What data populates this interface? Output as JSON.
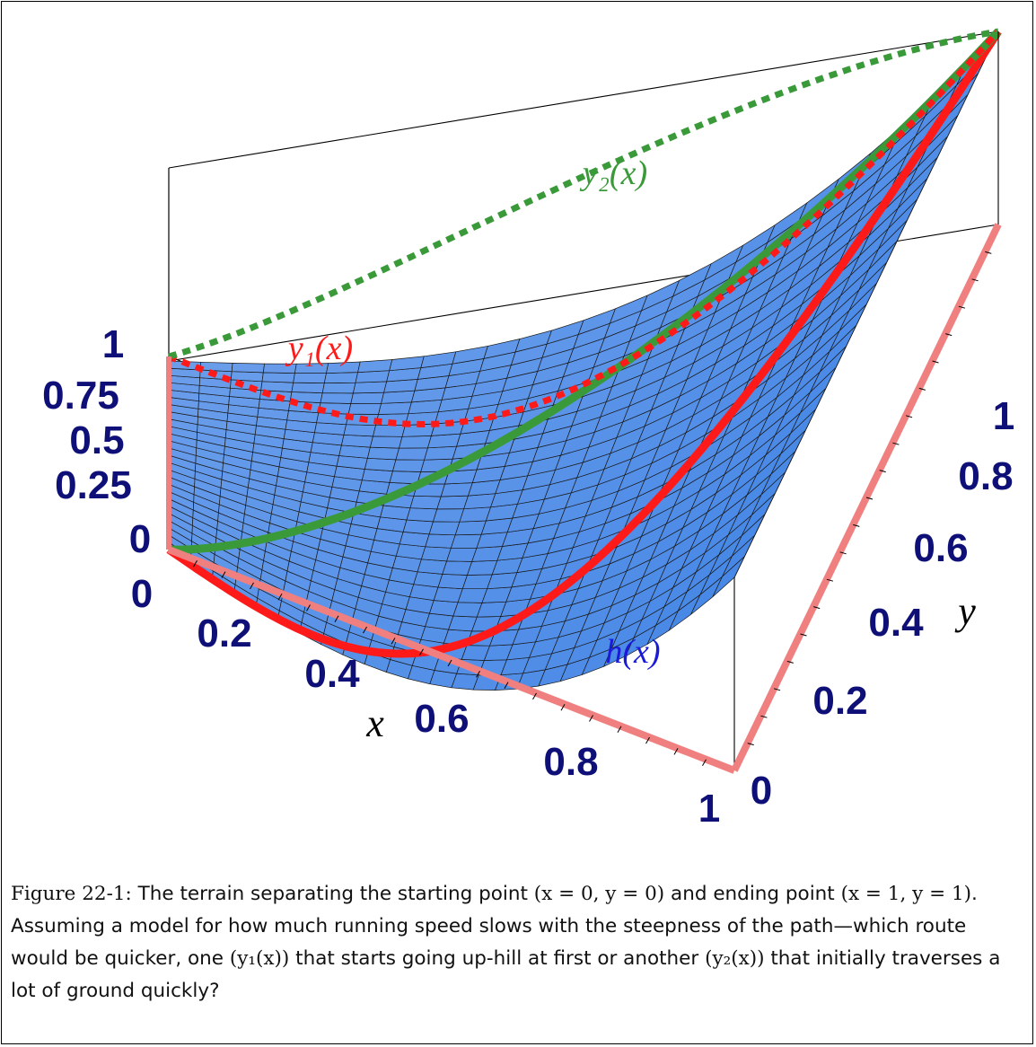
{
  "chart_data": {
    "type": "surface",
    "axes": {
      "x": {
        "label": "x",
        "ticks": [
          "0.2",
          "0.4",
          "0.6",
          "0.8",
          "1"
        ],
        "range": [
          0,
          1
        ]
      },
      "y": {
        "label": "y",
        "ticks": [
          "0",
          "0.2",
          "0.4",
          "0.6",
          "0.8",
          "1"
        ],
        "range": [
          0,
          1
        ]
      },
      "z": {
        "ticks": [
          "0",
          "0.25",
          "0.5",
          "0.75",
          "1"
        ],
        "range": [
          0,
          1
        ]
      },
      "origin_label": "0"
    },
    "surface": {
      "label": "h(x)",
      "color": "#5a8ee0"
    },
    "curves": [
      {
        "label": "y₁(x)",
        "color": "#ff1a1a",
        "style": "solid-on-surface + dotted-projection"
      },
      {
        "label": "y₂(x)",
        "color": "#3a9a3a",
        "style": "solid-on-surface + dotted-projection"
      }
    ],
    "axis_highlight_color": "#f08080"
  },
  "caption": {
    "lead": "Figure 22-1:",
    "lines": [
      "The terrain separating the starting point (x = 0, y = 0) and ending point (x = 1, y = 1). Assuming a model for how much running speed slows with the steepness of the path—which route would be quicker, one (y₁(x)) that starts going up-hill at first or another (y₂(x)) that initially traverses a lot of ground quickly?"
    ],
    "segments": {
      "s1": "The terrain separating the starting point ",
      "m1": "(x = 0, y = 0)",
      "s2": " and ending point ",
      "m2": "(x = 1, y = 1)",
      "s3": ". Assuming a model for how much running speed slows with the steepness of the path—which route would be quicker, one ",
      "m3": "(y₁(x))",
      "s4": " that starts going up-hill at first or another ",
      "m4": "(y₂(x))",
      "s5": " that initially traverses a lot of ground quickly?"
    }
  }
}
